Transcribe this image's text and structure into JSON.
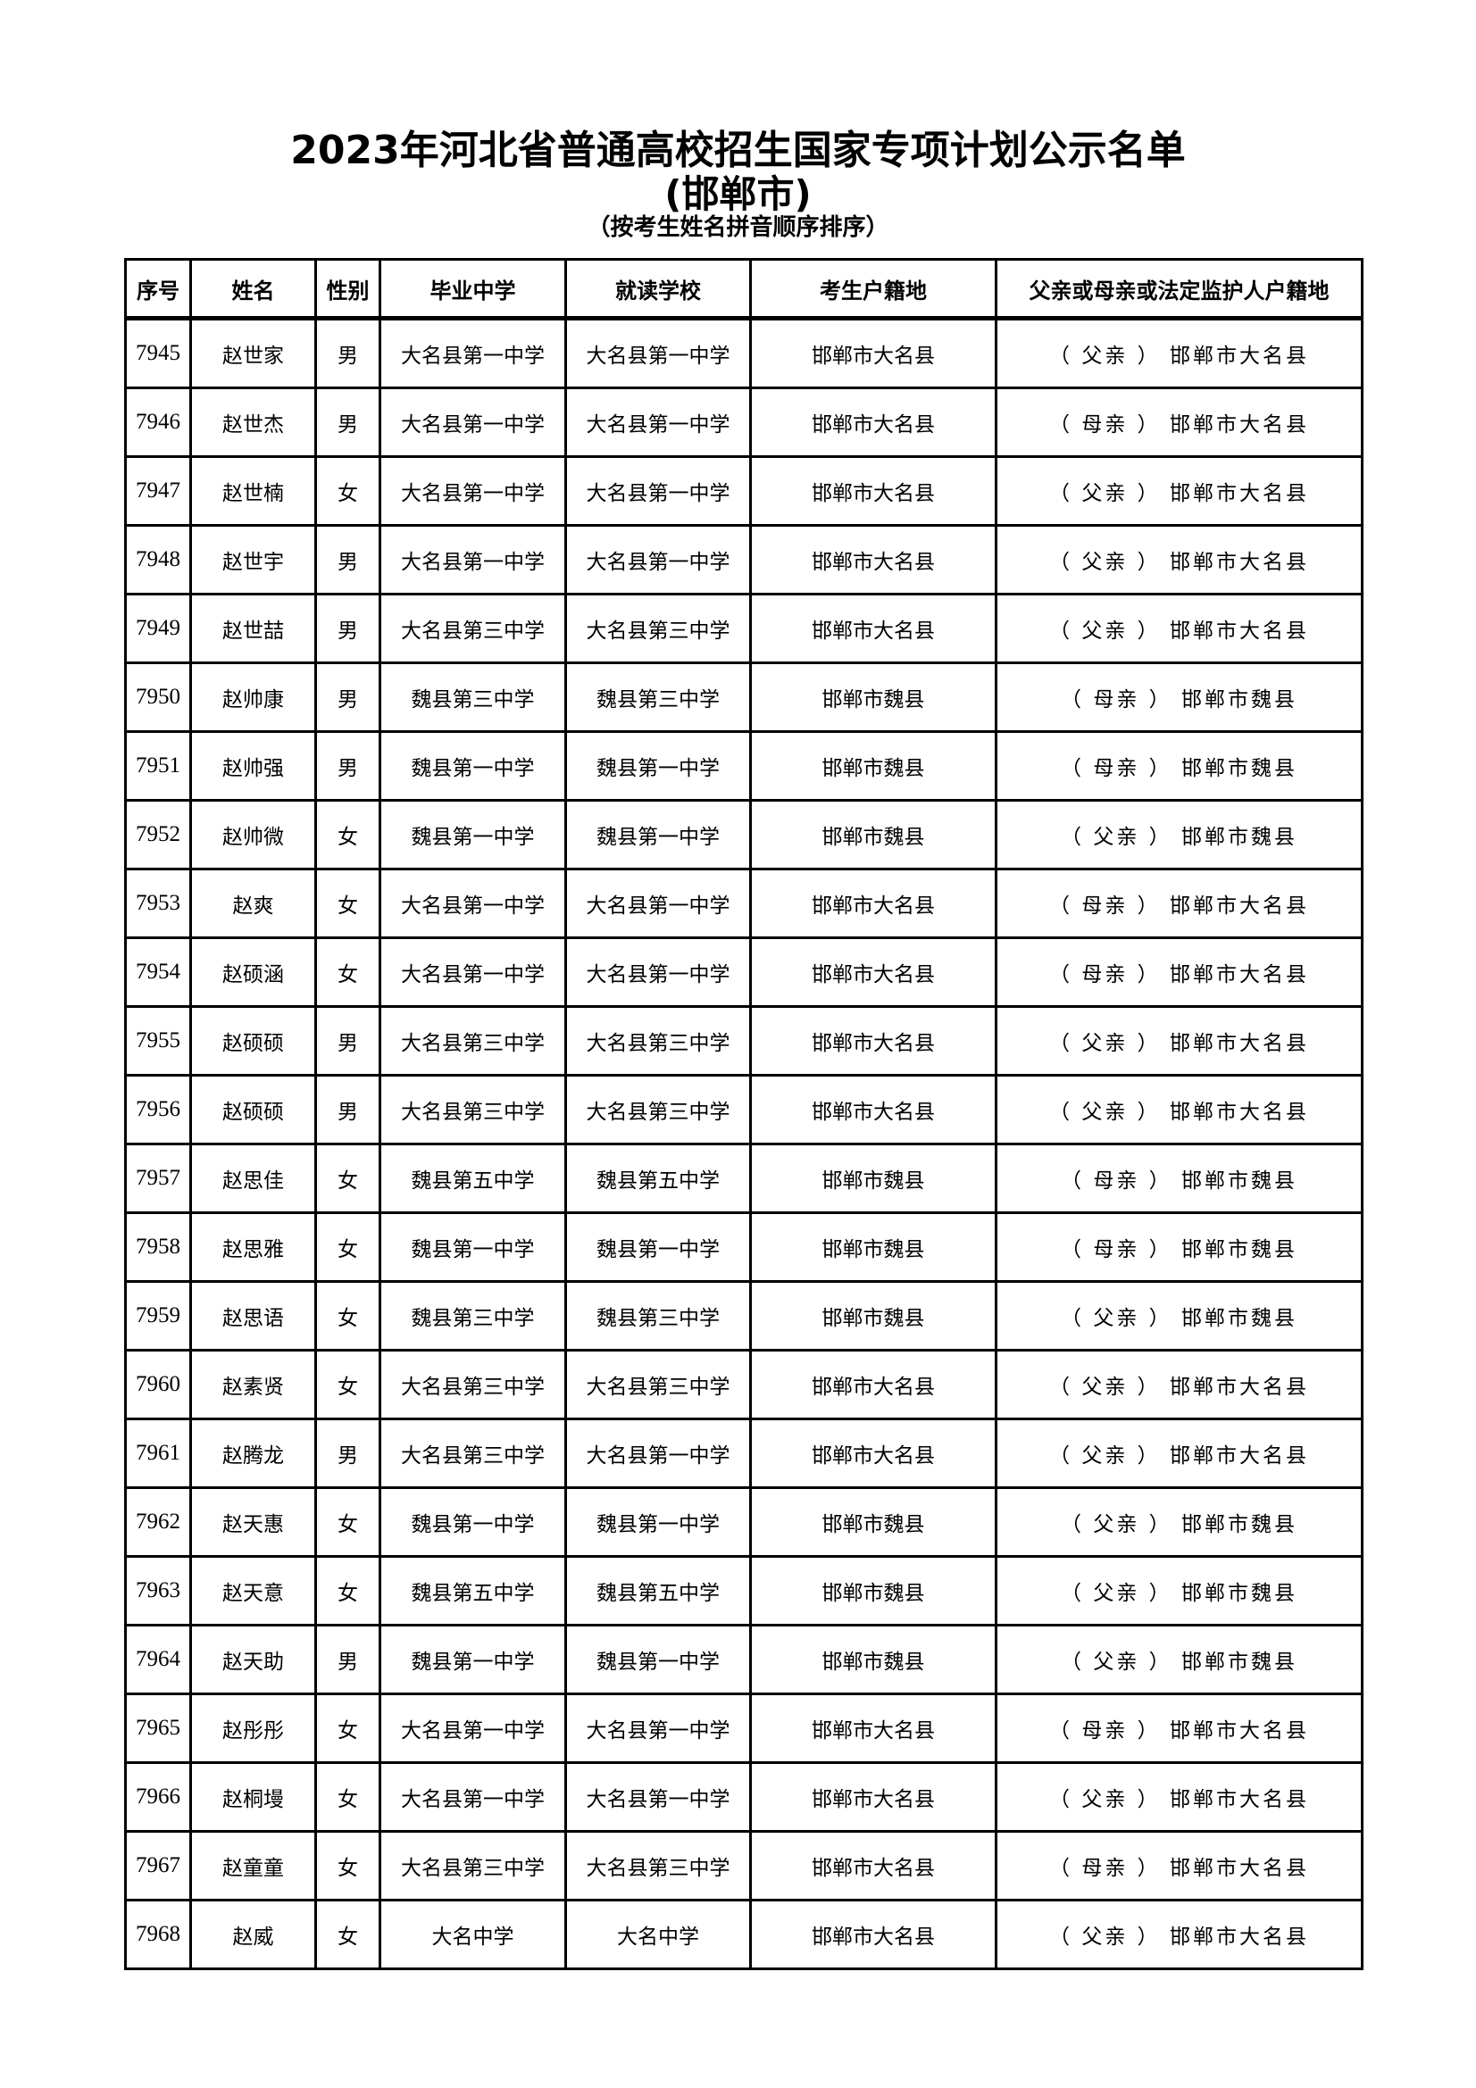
{
  "document": {
    "title": "2023年河北省普通高校招生国家专项计划公示名单",
    "subtitle": "(邯郸市)",
    "note": "（按考生姓名拼音顺序排序）"
  },
  "table": {
    "headers": [
      "序号",
      "姓名",
      "性别",
      "毕业中学",
      "就读学校",
      "考生户籍地",
      "父亲或母亲或法定监护人户籍地"
    ],
    "rows": [
      [
        "7945",
        "赵世家",
        "男",
        "大名县第一中学",
        "大名县第一中学",
        "邯郸市大名县",
        "（ 父亲 ） 邯郸市大名县"
      ],
      [
        "7946",
        "赵世杰",
        "男",
        "大名县第一中学",
        "大名县第一中学",
        "邯郸市大名县",
        "（ 母亲 ） 邯郸市大名县"
      ],
      [
        "7947",
        "赵世楠",
        "女",
        "大名县第一中学",
        "大名县第一中学",
        "邯郸市大名县",
        "（ 父亲 ） 邯郸市大名县"
      ],
      [
        "7948",
        "赵世宇",
        "男",
        "大名县第一中学",
        "大名县第一中学",
        "邯郸市大名县",
        "（ 父亲 ） 邯郸市大名县"
      ],
      [
        "7949",
        "赵世喆",
        "男",
        "大名县第三中学",
        "大名县第三中学",
        "邯郸市大名县",
        "（ 父亲 ） 邯郸市大名县"
      ],
      [
        "7950",
        "赵帅康",
        "男",
        "魏县第三中学",
        "魏县第三中学",
        "邯郸市魏县",
        "（ 母亲 ） 邯郸市魏县"
      ],
      [
        "7951",
        "赵帅强",
        "男",
        "魏县第一中学",
        "魏县第一中学",
        "邯郸市魏县",
        "（ 母亲 ） 邯郸市魏县"
      ],
      [
        "7952",
        "赵帅微",
        "女",
        "魏县第一中学",
        "魏县第一中学",
        "邯郸市魏县",
        "（ 父亲 ） 邯郸市魏县"
      ],
      [
        "7953",
        "赵爽",
        "女",
        "大名县第一中学",
        "大名县第一中学",
        "邯郸市大名县",
        "（ 母亲 ） 邯郸市大名县"
      ],
      [
        "7954",
        "赵硕涵",
        "女",
        "大名县第一中学",
        "大名县第一中学",
        "邯郸市大名县",
        "（ 母亲 ） 邯郸市大名县"
      ],
      [
        "7955",
        "赵硕硕",
        "男",
        "大名县第三中学",
        "大名县第三中学",
        "邯郸市大名县",
        "（ 父亲 ） 邯郸市大名县"
      ],
      [
        "7956",
        "赵硕硕",
        "男",
        "大名县第三中学",
        "大名县第三中学",
        "邯郸市大名县",
        "（ 父亲 ） 邯郸市大名县"
      ],
      [
        "7957",
        "赵思佳",
        "女",
        "魏县第五中学",
        "魏县第五中学",
        "邯郸市魏县",
        "（ 母亲 ） 邯郸市魏县"
      ],
      [
        "7958",
        "赵思雅",
        "女",
        "魏县第一中学",
        "魏县第一中学",
        "邯郸市魏县",
        "（ 母亲 ） 邯郸市魏县"
      ],
      [
        "7959",
        "赵思语",
        "女",
        "魏县第三中学",
        "魏县第三中学",
        "邯郸市魏县",
        "（ 父亲 ） 邯郸市魏县"
      ],
      [
        "7960",
        "赵素贤",
        "女",
        "大名县第三中学",
        "大名县第三中学",
        "邯郸市大名县",
        "（ 父亲 ） 邯郸市大名县"
      ],
      [
        "7961",
        "赵腾龙",
        "男",
        "大名县第三中学",
        "大名县第一中学",
        "邯郸市大名县",
        "（ 父亲 ） 邯郸市大名县"
      ],
      [
        "7962",
        "赵天惠",
        "女",
        "魏县第一中学",
        "魏县第一中学",
        "邯郸市魏县",
        "（ 父亲 ） 邯郸市魏县"
      ],
      [
        "7963",
        "赵天意",
        "女",
        "魏县第五中学",
        "魏县第五中学",
        "邯郸市魏县",
        "（ 父亲 ） 邯郸市魏县"
      ],
      [
        "7964",
        "赵天助",
        "男",
        "魏县第一中学",
        "魏县第一中学",
        "邯郸市魏县",
        "（ 父亲 ） 邯郸市魏县"
      ],
      [
        "7965",
        "赵彤彤",
        "女",
        "大名县第一中学",
        "大名县第一中学",
        "邯郸市大名县",
        "（ 母亲 ） 邯郸市大名县"
      ],
      [
        "7966",
        "赵桐墁",
        "女",
        "大名县第一中学",
        "大名县第一中学",
        "邯郸市大名县",
        "（ 父亲 ） 邯郸市大名县"
      ],
      [
        "7967",
        "赵童童",
        "女",
        "大名县第三中学",
        "大名县第三中学",
        "邯郸市大名县",
        "（ 母亲 ） 邯郸市大名县"
      ],
      [
        "7968",
        "赵威",
        "女",
        "大名中学",
        "大名中学",
        "邯郸市大名县",
        "（ 父亲 ） 邯郸市大名县"
      ]
    ]
  }
}
